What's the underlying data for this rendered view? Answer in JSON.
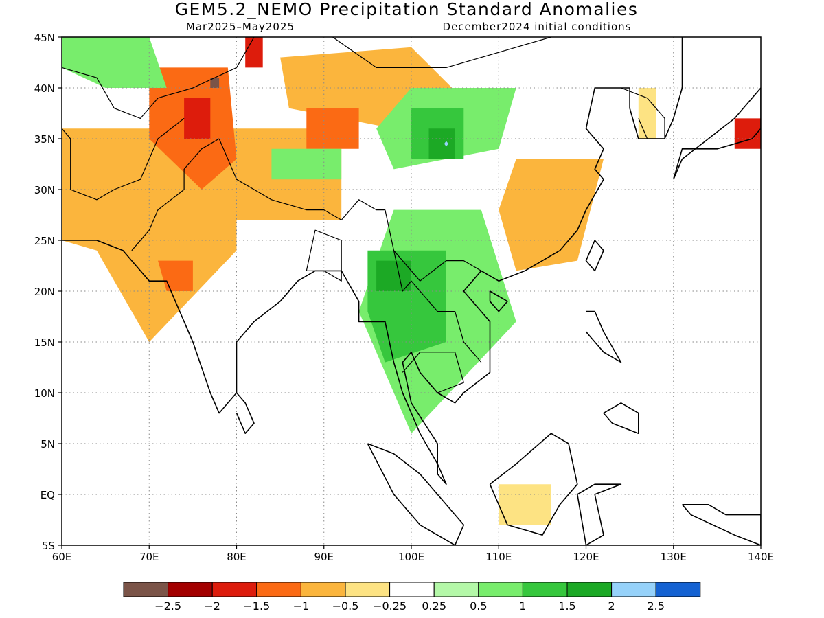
{
  "title": "GEM5.2_NEMO Precipitation Standard Anomalies",
  "subtitle_left": "Mar2025–May2025",
  "subtitle_right": "December2024 initial conditions",
  "map": {
    "projection": "cylindrical-equidistant",
    "lon_range": [
      60,
      140
    ],
    "lat_range": [
      -5,
      45
    ],
    "lon_ticks": [
      {
        "value": 60,
        "label": "60E"
      },
      {
        "value": 70,
        "label": "70E"
      },
      {
        "value": 80,
        "label": "80E"
      },
      {
        "value": 90,
        "label": "90E"
      },
      {
        "value": 100,
        "label": "100E"
      },
      {
        "value": 110,
        "label": "110E"
      },
      {
        "value": 120,
        "label": "120E"
      },
      {
        "value": 130,
        "label": "130E"
      },
      {
        "value": 140,
        "label": "140E"
      }
    ],
    "lat_ticks": [
      {
        "value": -5,
        "label": "5S"
      },
      {
        "value": 0,
        "label": "EQ"
      },
      {
        "value": 5,
        "label": "5N"
      },
      {
        "value": 10,
        "label": "10N"
      },
      {
        "value": 15,
        "label": "15N"
      },
      {
        "value": 20,
        "label": "20N"
      },
      {
        "value": 25,
        "label": "25N"
      },
      {
        "value": 30,
        "label": "30N"
      },
      {
        "value": 35,
        "label": "35N"
      },
      {
        "value": 40,
        "label": "40N"
      },
      {
        "value": 45,
        "label": "45N"
      }
    ],
    "gridlines": "dotted"
  },
  "colorbar": {
    "colors": [
      "#7b5448",
      "#a30000",
      "#dd1c0c",
      "#fb6a14",
      "#fbb53d",
      "#fde383",
      "#ffffff",
      "#b4f8a8",
      "#78ed6c",
      "#36c73d",
      "#1ca925",
      "#96d2fa",
      "#1462d2"
    ],
    "labels": [
      "−2.5",
      "−2",
      "−1.5",
      "−1",
      "−0.5",
      "−0.25",
      "0.25",
      "0.5",
      "1",
      "1.5",
      "2",
      "2.5"
    ]
  },
  "anomaly_regions": [
    {
      "level": "-0.5",
      "lons": [
        60,
        80,
        80,
        70,
        64,
        60
      ],
      "lats": [
        36,
        36,
        24,
        15,
        24,
        25
      ]
    },
    {
      "level": "-0.5",
      "lons": [
        80,
        92,
        92,
        80
      ],
      "lats": [
        36,
        36,
        27,
        27
      ]
    },
    {
      "level": "-0.5",
      "lons": [
        85,
        100,
        107,
        98,
        86
      ],
      "lats": [
        43,
        44,
        38,
        36,
        38
      ]
    },
    {
      "level": "-0.5",
      "lons": [
        112,
        122,
        119,
        112,
        110
      ],
      "lats": [
        33,
        33,
        23,
        22,
        28
      ]
    },
    {
      "level": "-0.25",
      "lons": [
        110,
        116,
        116,
        110
      ],
      "lats": [
        1,
        1,
        -3,
        -3
      ]
    },
    {
      "level": "-0.25",
      "lons": [
        126,
        128,
        128,
        126
      ],
      "lats": [
        40,
        40,
        35,
        35
      ]
    },
    {
      "level": "-1",
      "lons": [
        70,
        79,
        80,
        76,
        70
      ],
      "lats": [
        42,
        42,
        33,
        30,
        35
      ]
    },
    {
      "level": "-1",
      "lons": [
        71,
        75,
        75,
        72
      ],
      "lats": [
        23,
        23,
        20,
        20
      ]
    },
    {
      "level": "-1",
      "lons": [
        88,
        94,
        94,
        88
      ],
      "lats": [
        38,
        38,
        34,
        34
      ]
    },
    {
      "level": "-1.5",
      "lons": [
        74,
        77,
        77,
        74
      ],
      "lats": [
        39,
        39,
        35,
        35
      ]
    },
    {
      "level": "-1.5",
      "lons": [
        81,
        83,
        83,
        81
      ],
      "lats": [
        45,
        45,
        42,
        42
      ]
    },
    {
      "level": "-1.5",
      "lons": [
        137,
        140,
        140,
        137
      ],
      "lats": [
        37,
        37,
        34,
        34
      ]
    },
    {
      "level": "-2.5",
      "lons": [
        77,
        78,
        78,
        77
      ],
      "lats": [
        41,
        41,
        40,
        40
      ]
    },
    {
      "level": "0.5",
      "lons": [
        60,
        70,
        72,
        65,
        60
      ],
      "lats": [
        45,
        45,
        40,
        40,
        42
      ]
    },
    {
      "level": "0.5",
      "lons": [
        98,
        108,
        112,
        100,
        94
      ],
      "lats": [
        28,
        28,
        17,
        6,
        18
      ]
    },
    {
      "level": "0.5",
      "lons": [
        100,
        112,
        110,
        98,
        96
      ],
      "lats": [
        40,
        40,
        34,
        32,
        36
      ]
    },
    {
      "level": "0.5",
      "lons": [
        84,
        92,
        92,
        84
      ],
      "lats": [
        34,
        34,
        31,
        31
      ]
    },
    {
      "level": "1",
      "lons": [
        95,
        104,
        104,
        97,
        95
      ],
      "lats": [
        24,
        24,
        15,
        13,
        18
      ]
    },
    {
      "level": "1",
      "lons": [
        100,
        106,
        106,
        100
      ],
      "lats": [
        38,
        38,
        33,
        33
      ]
    },
    {
      "level": "1.5",
      "lons": [
        96,
        100,
        100,
        96
      ],
      "lats": [
        23,
        23,
        20,
        20
      ]
    },
    {
      "level": "1.5",
      "lons": [
        102,
        105,
        105,
        102
      ],
      "lats": [
        36,
        36,
        33,
        33
      ]
    }
  ],
  "coastlines": [
    {
      "name": "mainland",
      "lons": [
        60,
        64,
        67,
        68,
        70,
        72,
        73,
        75,
        77,
        78,
        80,
        80,
        82,
        85,
        87,
        89,
        91,
        92,
        94,
        94,
        97,
        98,
        99,
        100,
        101,
        103,
        104,
        103,
        103,
        100,
        99,
        100,
        101,
        103,
        105,
        106,
        109,
        109,
        106,
        108,
        110,
        113,
        115,
        117,
        119,
        120,
        122,
        121,
        122,
        120,
        121,
        125,
        125,
        126,
        129,
        130,
        131,
        131
      ],
      "lats": [
        25,
        25,
        24,
        23,
        21,
        21,
        19,
        15,
        10,
        8,
        10,
        15,
        17,
        19,
        21,
        22,
        22,
        22,
        19,
        17,
        17,
        13,
        10,
        8,
        6,
        3,
        1,
        2,
        5,
        9,
        13,
        14,
        12,
        10,
        9,
        10,
        12,
        17,
        20,
        22,
        21,
        22,
        23,
        24,
        26,
        28,
        31,
        32,
        34,
        36,
        40,
        40,
        38,
        35,
        35,
        37,
        40,
        45
      ]
    },
    {
      "name": "sri-lanka",
      "lons": [
        80,
        81,
        82,
        81,
        80
      ],
      "lats": [
        10,
        9,
        7,
        6,
        8
      ]
    },
    {
      "name": "sumatra",
      "lons": [
        95,
        98,
        101,
        103,
        106,
        105,
        101,
        98,
        95
      ],
      "lats": [
        5,
        4,
        2,
        0,
        -3,
        -5,
        -3,
        0,
        5
      ]
    },
    {
      "name": "borneo",
      "lons": [
        109,
        112,
        116,
        118,
        119,
        117,
        115,
        111,
        109
      ],
      "lats": [
        1,
        3,
        6,
        5,
        1,
        -1,
        -4,
        -3,
        1
      ]
    },
    {
      "name": "sulawesi",
      "lons": [
        119,
        121,
        124,
        121,
        122,
        120,
        119
      ],
      "lats": [
        0,
        1,
        1,
        0,
        -4,
        -5,
        0
      ]
    },
    {
      "name": "mindanao",
      "lons": [
        122,
        124,
        126,
        126,
        123,
        122
      ],
      "lats": [
        8,
        9,
        8,
        6,
        7,
        8
      ]
    },
    {
      "name": "luzon",
      "lons": [
        120,
        121,
        122,
        124,
        122,
        120
      ],
      "lats": [
        18,
        18,
        16,
        13,
        14,
        16
      ]
    },
    {
      "name": "taiwan",
      "lons": [
        121,
        122,
        121,
        120,
        121
      ],
      "lats": [
        25,
        24,
        22,
        23,
        25
      ]
    },
    {
      "name": "hainan",
      "lons": [
        109,
        111,
        110,
        109,
        109
      ],
      "lats": [
        20,
        19,
        18,
        19,
        20
      ]
    },
    {
      "name": "kyushu-honshu",
      "lons": [
        130,
        131,
        135,
        139,
        140,
        140,
        137,
        134,
        131,
        130
      ],
      "lats": [
        31,
        34,
        34,
        35,
        36,
        40,
        37,
        35,
        33,
        31
      ]
    },
    {
      "name": "new-guinea",
      "lons": [
        131,
        134,
        136,
        140,
        140,
        137,
        132,
        131
      ],
      "lats": [
        -1,
        -1,
        -2,
        -2,
        -5,
        -4,
        -2,
        -1
      ]
    }
  ],
  "borders": [
    {
      "name": "pakistan-india",
      "lons": [
        68,
        70,
        71,
        74,
        74,
        76,
        78
      ],
      "lats": [
        24,
        26,
        28,
        30,
        32,
        34,
        35
      ]
    },
    {
      "name": "afghanistan-pakistan",
      "lons": [
        61,
        64,
        66,
        69,
        70,
        71,
        74
      ],
      "lats": [
        30,
        29,
        30,
        31,
        33,
        35,
        37
      ]
    },
    {
      "name": "iran-afghanistan",
      "lons": [
        61,
        61,
        61,
        60
      ],
      "lats": [
        30,
        33,
        35,
        36
      ]
    },
    {
      "name": "central-asia",
      "lons": [
        60,
        64,
        66,
        69,
        71,
        75,
        80
      ],
      "lats": [
        42,
        41,
        38,
        37,
        39,
        40,
        42
      ]
    },
    {
      "name": "himalaya",
      "lons": [
        78,
        80,
        82,
        84,
        88,
        90,
        92,
        94,
        96,
        97
      ],
      "lats": [
        35,
        31,
        30,
        29,
        28,
        28,
        27,
        29,
        28,
        28
      ]
    },
    {
      "name": "kazakhstan-china",
      "lons": [
        80,
        82,
        85,
        87,
        91,
        96,
        104,
        112,
        116,
        120
      ],
      "lats": [
        42,
        45,
        47,
        49,
        45,
        42,
        42,
        44,
        45,
        47
      ]
    },
    {
      "name": "bangladesh",
      "lons": [
        88,
        89,
        92,
        92,
        90,
        88
      ],
      "lats": [
        22,
        26,
        25,
        21,
        22,
        22
      ]
    },
    {
      "name": "myanmar-thailand-laos",
      "lons": [
        97,
        98,
        99,
        100,
        101,
        103,
        105,
        106,
        108
      ],
      "lats": [
        28,
        24,
        20,
        21,
        20,
        18,
        18,
        15,
        13
      ]
    },
    {
      "name": "china-vietnam",
      "lons": [
        98,
        101,
        104,
        106,
        108
      ],
      "lats": [
        24,
        21,
        23,
        23,
        22
      ]
    },
    {
      "name": "thailand-cambodia",
      "lons": [
        99,
        101,
        103,
        105,
        106,
        103
      ],
      "lats": [
        12,
        14,
        14,
        14,
        11,
        10
      ]
    },
    {
      "name": "korea",
      "lons": [
        124,
        127,
        129,
        129,
        127,
        126
      ],
      "lats": [
        40,
        39,
        37,
        35,
        35,
        37
      ]
    }
  ],
  "markers": [
    {
      "name": "diamond",
      "lon": 104,
      "lat": 34.5,
      "color": "#96d2fa"
    }
  ]
}
